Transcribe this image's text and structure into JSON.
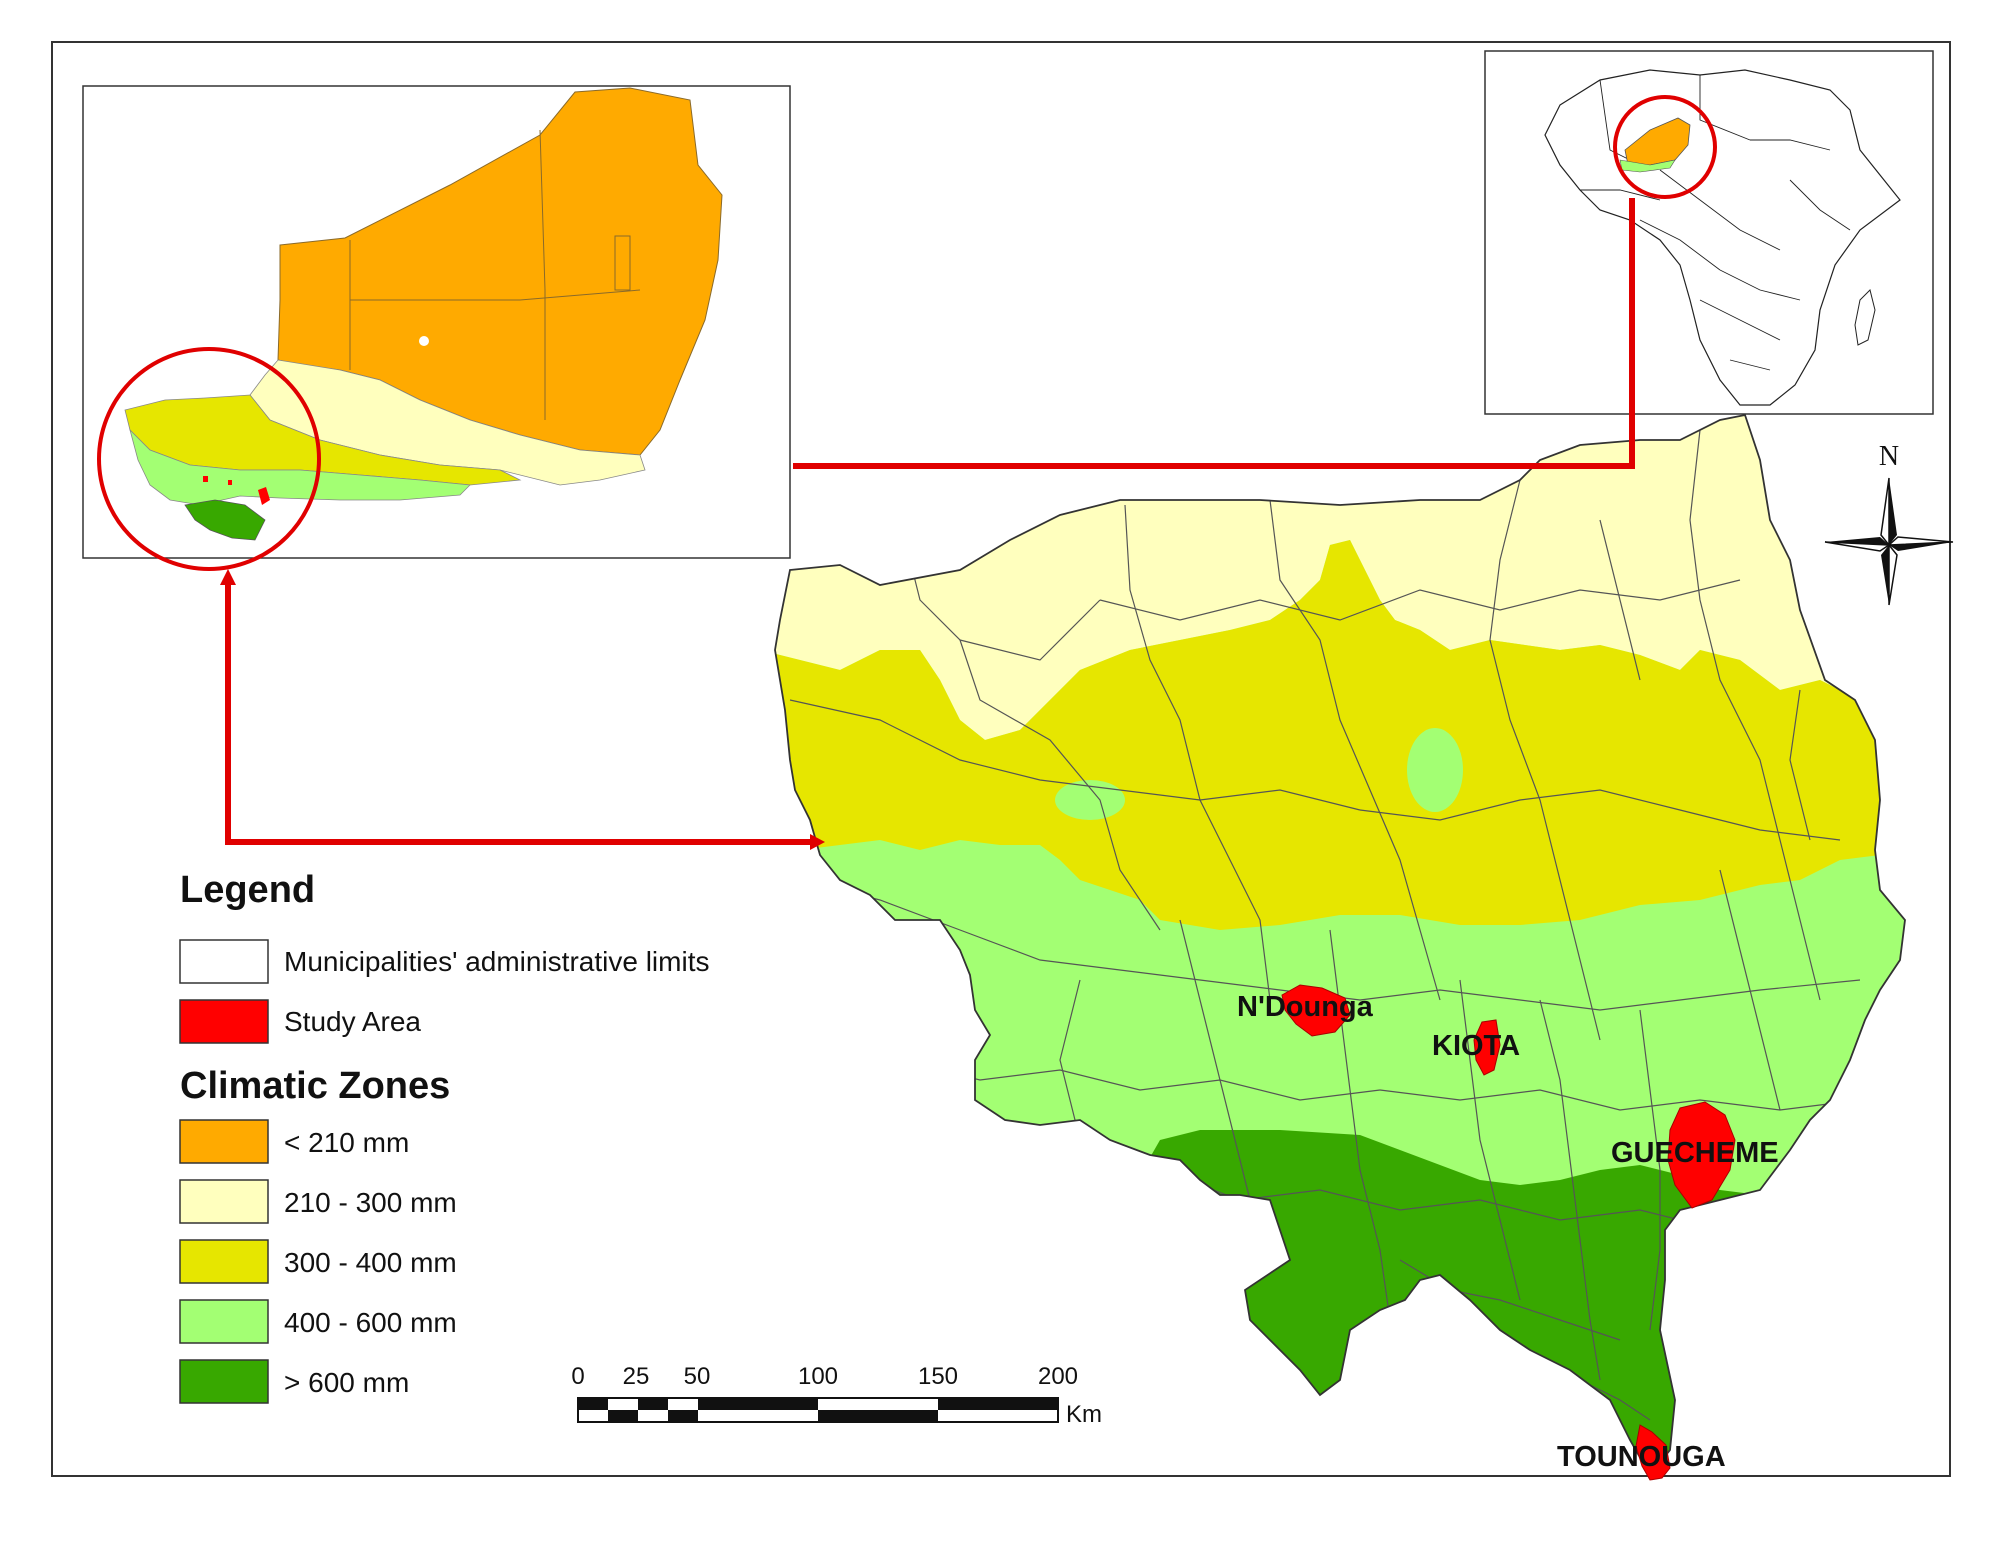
{
  "legend": {
    "title": "Legend",
    "items": [
      {
        "label": "Municipalities' administrative limits",
        "color": "#ffffff"
      },
      {
        "label": "Study Area",
        "color": "#ff0000"
      }
    ]
  },
  "climatic_zones": {
    "title": "Climatic Zones",
    "items": [
      {
        "label": "< 210 mm",
        "color": "#ffaa00"
      },
      {
        "label": "210 - 300 mm",
        "color": "#ffffbe"
      },
      {
        "label": "300 - 400 mm",
        "color": "#e6e600"
      },
      {
        "label": "400 - 600 mm",
        "color": "#a3ff73"
      },
      {
        "label": "> 600 mm",
        "color": "#38a800"
      }
    ]
  },
  "study_areas": [
    "N'Dounga",
    "KIOTA",
    "GUECHEME",
    "TOUNOUGA"
  ],
  "scale_bar": {
    "ticks": [
      "0",
      "25",
      "50",
      "100",
      "150",
      "200"
    ],
    "unit": "Km"
  },
  "north_arrow": {
    "label": "N"
  },
  "colors": {
    "boundary": "#555555",
    "highlight": "#e00000",
    "frame": "#333333"
  }
}
